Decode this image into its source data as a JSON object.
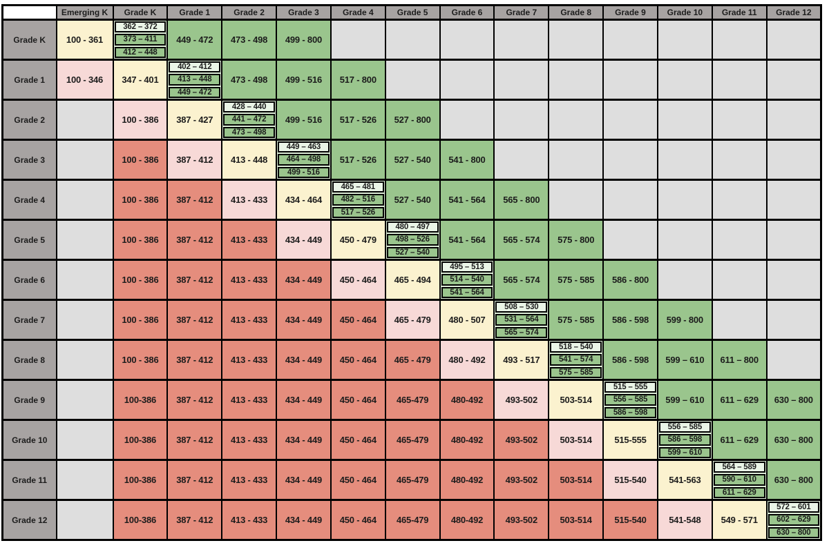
{
  "colors": {
    "red": "#E58D7D",
    "pink": "#F7D9D7",
    "cream": "#FBF2CF",
    "green": "#9AC58D",
    "mint": "#EAF5E7",
    "diagbg": "#DEEDD8",
    "empty": "#DEDEDE",
    "headgray": "#A7A3A2",
    "corner": "#FFFFFF",
    "border": "#000000",
    "text": "#1C1C1C"
  },
  "table": {
    "corner": "",
    "column_headers": [
      "Emerging K",
      "Grade K",
      "Grade 1",
      "Grade 2",
      "Grade 3",
      "Grade 4",
      "Grade 5",
      "Grade 6",
      "Grade 7",
      "Grade 8",
      "Grade 9",
      "Grade 10",
      "Grade 11",
      "Grade 12"
    ],
    "rows": [
      {
        "header": "Grade K",
        "cells": [
          {
            "k": "cream",
            "t": "100 - 361"
          },
          {
            "k": "diag",
            "p": [
              "362 – 372",
              "373 – 411",
              "412 – 448"
            ]
          },
          {
            "k": "green",
            "t": "449 - 472"
          },
          {
            "k": "green",
            "t": "473 - 498"
          },
          {
            "k": "green",
            "t": "499 - 800"
          },
          {
            "k": "empty"
          },
          {
            "k": "empty"
          },
          {
            "k": "empty"
          },
          {
            "k": "empty"
          },
          {
            "k": "empty"
          },
          {
            "k": "empty"
          },
          {
            "k": "empty"
          },
          {
            "k": "empty"
          },
          {
            "k": "empty"
          }
        ]
      },
      {
        "header": "Grade 1",
        "cells": [
          {
            "k": "pink",
            "t": "100 - 346"
          },
          {
            "k": "cream",
            "t": "347 - 401"
          },
          {
            "k": "diag",
            "p": [
              "402 – 412",
              "413 – 448",
              "449 – 472"
            ]
          },
          {
            "k": "green",
            "t": "473 - 498"
          },
          {
            "k": "green",
            "t": "499 - 516"
          },
          {
            "k": "green",
            "t": "517 - 800"
          },
          {
            "k": "empty"
          },
          {
            "k": "empty"
          },
          {
            "k": "empty"
          },
          {
            "k": "empty"
          },
          {
            "k": "empty"
          },
          {
            "k": "empty"
          },
          {
            "k": "empty"
          },
          {
            "k": "empty"
          }
        ]
      },
      {
        "header": "Grade 2",
        "cells": [
          {
            "k": "empty"
          },
          {
            "k": "pink",
            "t": "100 - 386"
          },
          {
            "k": "cream",
            "t": "387 - 427"
          },
          {
            "k": "diag",
            "p": [
              "428 – 440",
              "441 – 472",
              "473 – 498"
            ]
          },
          {
            "k": "green",
            "t": "499 - 516"
          },
          {
            "k": "green",
            "t": "517 - 526"
          },
          {
            "k": "green",
            "t": "527 - 800"
          },
          {
            "k": "empty"
          },
          {
            "k": "empty"
          },
          {
            "k": "empty"
          },
          {
            "k": "empty"
          },
          {
            "k": "empty"
          },
          {
            "k": "empty"
          },
          {
            "k": "empty"
          }
        ]
      },
      {
        "header": "Grade 3",
        "cells": [
          {
            "k": "empty"
          },
          {
            "k": "red",
            "t": "100 - 386"
          },
          {
            "k": "pink",
            "t": "387 - 412"
          },
          {
            "k": "cream",
            "t": "413 - 448"
          },
          {
            "k": "diag",
            "p": [
              "449 – 463",
              "464 – 498",
              "499 - 516"
            ]
          },
          {
            "k": "green",
            "t": "517 - 526"
          },
          {
            "k": "green",
            "t": "527 - 540"
          },
          {
            "k": "green",
            "t": "541 - 800"
          },
          {
            "k": "empty"
          },
          {
            "k": "empty"
          },
          {
            "k": "empty"
          },
          {
            "k": "empty"
          },
          {
            "k": "empty"
          },
          {
            "k": "empty"
          }
        ]
      },
      {
        "header": "Grade 4",
        "cells": [
          {
            "k": "empty"
          },
          {
            "k": "red",
            "t": "100 - 386"
          },
          {
            "k": "red",
            "t": "387 - 412"
          },
          {
            "k": "pink",
            "t": "413 - 433"
          },
          {
            "k": "cream",
            "t": "434 - 464"
          },
          {
            "k": "diag",
            "p": [
              "465 – 481",
              "482 – 516",
              "517 – 526"
            ]
          },
          {
            "k": "green",
            "t": "527 - 540"
          },
          {
            "k": "green",
            "t": "541 - 564"
          },
          {
            "k": "green",
            "t": "565 - 800"
          },
          {
            "k": "empty"
          },
          {
            "k": "empty"
          },
          {
            "k": "empty"
          },
          {
            "k": "empty"
          },
          {
            "k": "empty"
          }
        ]
      },
      {
        "header": "Grade 5",
        "cells": [
          {
            "k": "empty"
          },
          {
            "k": "red",
            "t": "100 - 386"
          },
          {
            "k": "red",
            "t": "387 - 412"
          },
          {
            "k": "red",
            "t": "413 - 433"
          },
          {
            "k": "pink",
            "t": "434 - 449"
          },
          {
            "k": "cream",
            "t": "450 - 479"
          },
          {
            "k": "diag",
            "p": [
              "480 – 497",
              "498 – 526",
              "527 – 540"
            ]
          },
          {
            "k": "green",
            "t": "541 - 564"
          },
          {
            "k": "green",
            "t": "565 - 574"
          },
          {
            "k": "green",
            "t": "575 - 800"
          },
          {
            "k": "empty"
          },
          {
            "k": "empty"
          },
          {
            "k": "empty"
          },
          {
            "k": "empty"
          }
        ]
      },
      {
        "header": "Grade 6",
        "cells": [
          {
            "k": "empty"
          },
          {
            "k": "red",
            "t": "100 - 386"
          },
          {
            "k": "red",
            "t": "387 - 412"
          },
          {
            "k": "red",
            "t": "413 - 433"
          },
          {
            "k": "red",
            "t": "434 - 449"
          },
          {
            "k": "pink",
            "t": "450 - 464"
          },
          {
            "k": "cream",
            "t": "465 - 494"
          },
          {
            "k": "diag",
            "p": [
              "495 – 513",
              "514 – 540",
              "541 – 564"
            ]
          },
          {
            "k": "green",
            "t": "565 - 574"
          },
          {
            "k": "green",
            "t": "575 - 585"
          },
          {
            "k": "green",
            "t": "586 - 800"
          },
          {
            "k": "empty"
          },
          {
            "k": "empty"
          },
          {
            "k": "empty"
          }
        ]
      },
      {
        "header": "Grade 7",
        "cells": [
          {
            "k": "empty"
          },
          {
            "k": "red",
            "t": "100 - 386"
          },
          {
            "k": "red",
            "t": "387 - 412"
          },
          {
            "k": "red",
            "t": "413 - 433"
          },
          {
            "k": "red",
            "t": "434 - 449"
          },
          {
            "k": "red",
            "t": "450 - 464"
          },
          {
            "k": "pink",
            "t": "465 - 479"
          },
          {
            "k": "cream",
            "t": "480 - 507"
          },
          {
            "k": "diag",
            "p": [
              "508 – 530",
              "531 – 564",
              "565 – 574"
            ]
          },
          {
            "k": "green",
            "t": "575 - 585"
          },
          {
            "k": "green",
            "t": "586 - 598"
          },
          {
            "k": "green",
            "t": "599 - 800"
          },
          {
            "k": "empty"
          },
          {
            "k": "empty"
          }
        ]
      },
      {
        "header": "Grade 8",
        "cells": [
          {
            "k": "empty"
          },
          {
            "k": "red",
            "t": "100 - 386"
          },
          {
            "k": "red",
            "t": "387 - 412"
          },
          {
            "k": "red",
            "t": "413 - 433"
          },
          {
            "k": "red",
            "t": "434 - 449"
          },
          {
            "k": "red",
            "t": "450 - 464"
          },
          {
            "k": "red",
            "t": "465 - 479"
          },
          {
            "k": "pink",
            "t": "480 - 492"
          },
          {
            "k": "cream",
            "t": "493 - 517"
          },
          {
            "k": "diag",
            "p": [
              "518 – 540",
              "541 – 574",
              "575 – 585"
            ]
          },
          {
            "k": "green",
            "t": "586 - 598"
          },
          {
            "k": "green",
            "t": "599 – 610"
          },
          {
            "k": "green",
            "t": "611 – 800"
          },
          {
            "k": "empty"
          }
        ]
      },
      {
        "header": "Grade 9",
        "cells": [
          {
            "k": "empty"
          },
          {
            "k": "red",
            "t": "100-386"
          },
          {
            "k": "red",
            "t": "387 - 412"
          },
          {
            "k": "red",
            "t": "413 - 433"
          },
          {
            "k": "red",
            "t": "434 - 449"
          },
          {
            "k": "red",
            "t": "450 - 464"
          },
          {
            "k": "red",
            "t": "465-479"
          },
          {
            "k": "red",
            "t": "480-492"
          },
          {
            "k": "pink",
            "t": "493-502"
          },
          {
            "k": "cream",
            "t": "503-514"
          },
          {
            "k": "diag",
            "p": [
              "515 – 555",
              "556 – 585",
              "586 – 598"
            ]
          },
          {
            "k": "green",
            "t": "599 – 610"
          },
          {
            "k": "green",
            "t": "611 – 629"
          },
          {
            "k": "green",
            "t": "630 – 800"
          }
        ]
      },
      {
        "header": "Grade 10",
        "cells": [
          {
            "k": "empty"
          },
          {
            "k": "red",
            "t": "100-386"
          },
          {
            "k": "red",
            "t": "387 - 412"
          },
          {
            "k": "red",
            "t": "413 - 433"
          },
          {
            "k": "red",
            "t": "434 - 449"
          },
          {
            "k": "red",
            "t": "450 - 464"
          },
          {
            "k": "red",
            "t": "465-479"
          },
          {
            "k": "red",
            "t": "480-492"
          },
          {
            "k": "red",
            "t": "493-502"
          },
          {
            "k": "pink",
            "t": "503-514"
          },
          {
            "k": "cream",
            "t": "515-555"
          },
          {
            "k": "diag",
            "p": [
              "556 – 585",
              "586 – 598",
              "599 – 610"
            ]
          },
          {
            "k": "green",
            "t": "611 – 629"
          },
          {
            "k": "green",
            "t": "630 – 800"
          }
        ]
      },
      {
        "header": "Grade 11",
        "cells": [
          {
            "k": "empty"
          },
          {
            "k": "red",
            "t": "100-386"
          },
          {
            "k": "red",
            "t": "387 - 412"
          },
          {
            "k": "red",
            "t": "413 - 433"
          },
          {
            "k": "red",
            "t": "434 - 449"
          },
          {
            "k": "red",
            "t": "450 - 464"
          },
          {
            "k": "red",
            "t": "465-479"
          },
          {
            "k": "red",
            "t": "480-492"
          },
          {
            "k": "red",
            "t": "493-502"
          },
          {
            "k": "red",
            "t": "503-514"
          },
          {
            "k": "pink",
            "t": "515-540"
          },
          {
            "k": "cream",
            "t": "541-563"
          },
          {
            "k": "diag",
            "p": [
              "564 – 589",
              "590 – 610",
              "611 – 629"
            ]
          },
          {
            "k": "green",
            "t": "630 – 800"
          }
        ]
      },
      {
        "header": "Grade 12",
        "cells": [
          {
            "k": "empty"
          },
          {
            "k": "red",
            "t": "100-386"
          },
          {
            "k": "red",
            "t": "387 - 412"
          },
          {
            "k": "red",
            "t": "413 - 433"
          },
          {
            "k": "red",
            "t": "434 - 449"
          },
          {
            "k": "red",
            "t": "450 - 464"
          },
          {
            "k": "red",
            "t": "465-479"
          },
          {
            "k": "red",
            "t": "480-492"
          },
          {
            "k": "red",
            "t": "493-502"
          },
          {
            "k": "red",
            "t": "503-514"
          },
          {
            "k": "red",
            "t": "515-540"
          },
          {
            "k": "pink",
            "t": "541-548"
          },
          {
            "k": "cream",
            "t": "549 - 571"
          },
          {
            "k": "diag",
            "p": [
              "572 – 601",
              "602 – 629",
              "630 – 800"
            ]
          }
        ]
      }
    ]
  }
}
